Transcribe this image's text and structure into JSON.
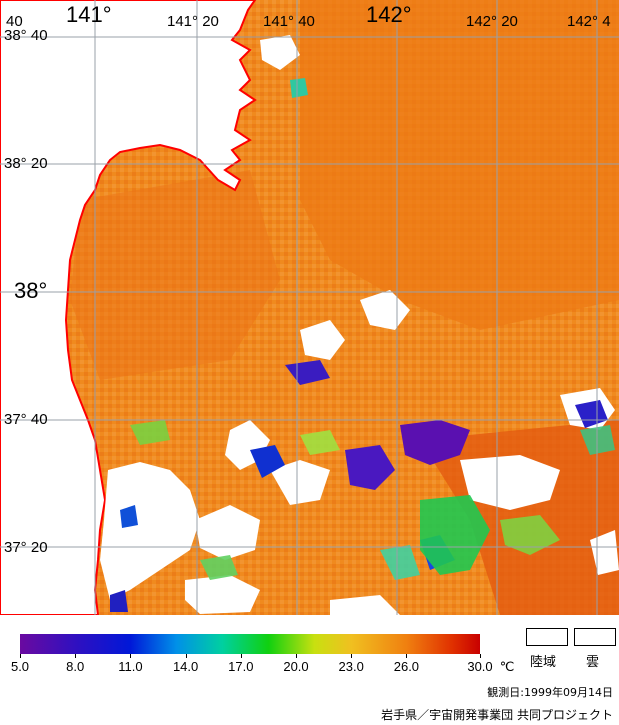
{
  "map": {
    "lon_labels": [
      {
        "text": "141°",
        "size": "big"
      },
      {
        "text": "141° 20",
        "size": "small"
      },
      {
        "text": "141° 40",
        "size": "small"
      },
      {
        "text": "142°",
        "size": "big"
      },
      {
        "text": "142° 20",
        "size": "small"
      },
      {
        "text": "142° 4",
        "size": "small"
      }
    ],
    "lat_labels": [
      {
        "text": "38° 40",
        "size": "small"
      },
      {
        "text": "38° 20",
        "size": "small"
      },
      {
        "text": "38°",
        "size": "big"
      },
      {
        "text": "37° 40",
        "size": "small"
      },
      {
        "text": "37° 20",
        "size": "small"
      }
    ],
    "corner_label": "40",
    "colors": {
      "land": "#ffffff",
      "coast": "#ff0000",
      "grid": "#9aa0a8",
      "sea_warm": "#f08a1e",
      "sea_hot": "#e84e10"
    }
  },
  "scale": {
    "ticks": [
      "5.0",
      "8.0",
      "11.0",
      "14.0",
      "17.0",
      "20.0",
      "23.0",
      "26.0",
      "30.0"
    ],
    "unit": "℃",
    "min_value": 5.0,
    "max_value": 30.0
  },
  "legend": {
    "land_label": "陸域",
    "cloud_label": "雲"
  },
  "observation_date": "観測日:1999年09月14日",
  "credit": "岩手県／宇宙開発事業団 共同プロジェクト"
}
